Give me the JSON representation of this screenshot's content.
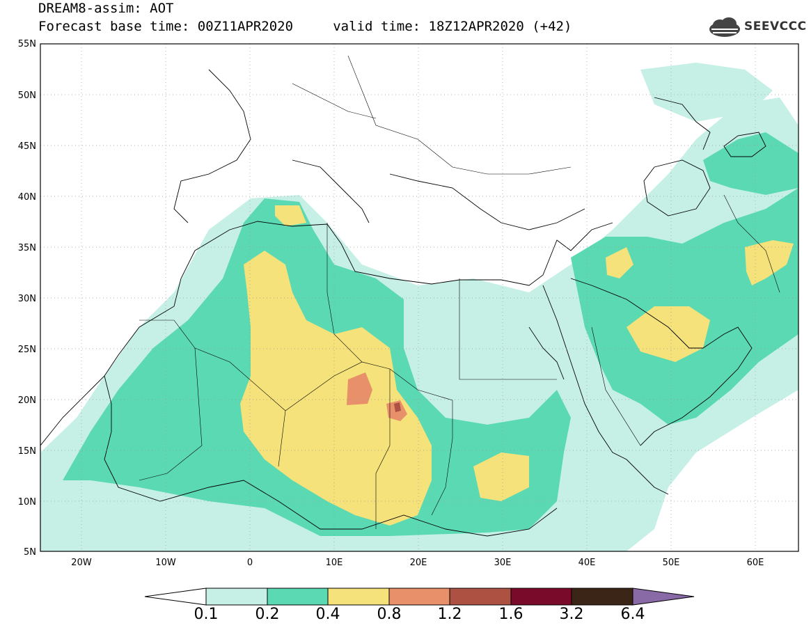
{
  "header": {
    "line1": "DREAM8-assim: AOT",
    "line2": "Forecast base time: 00Z11APR2020     valid time: 18Z12APR2020 (+42)"
  },
  "logo": {
    "text": "SEEVCCC",
    "icon": "cloud-logo-icon"
  },
  "map": {
    "variable": "AOT",
    "lon_range": [
      -25,
      65
    ],
    "lat_range": [
      5,
      55
    ],
    "lat_labels": [
      "55N",
      "50N",
      "45N",
      "40N",
      "35N",
      "30N",
      "25N",
      "20N",
      "15N",
      "10N",
      "5N"
    ],
    "lon_labels": [
      "20W",
      "10W",
      "0",
      "10E",
      "20E",
      "30E",
      "40E",
      "50E",
      "60E"
    ]
  },
  "colorbar": {
    "levels": [
      "0.1",
      "0.2",
      "0.4",
      "0.8",
      "1.2",
      "1.6",
      "3.2",
      "6.4"
    ],
    "colors": [
      "#ffffff",
      "#c6f0e6",
      "#5bd9b3",
      "#f5e27a",
      "#e8906a",
      "#ad5243",
      "#7a0a2a",
      "#3b2516",
      "#8a6aa6"
    ]
  }
}
